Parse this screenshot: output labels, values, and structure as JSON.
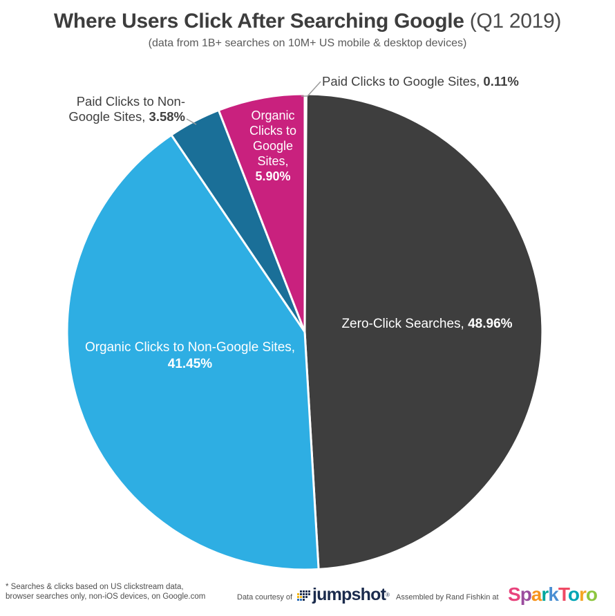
{
  "header": {
    "title_bold": "Where Users Click After Searching Google",
    "title_regular": " (Q1 2019)",
    "subtitle": "(data from 1B+ searches on 10M+ US mobile & desktop devices)"
  },
  "chart_data": {
    "type": "pie",
    "title": "Where Users Click After Searching Google (Q1 2019)",
    "subtitle": "(data from 1B+ searches on 10M+ US mobile & desktop devices)",
    "start_angle_deg": 0,
    "direction": "clockwise",
    "total": 100,
    "slices": [
      {
        "label": "Paid Clicks to Google Sites",
        "value": 0.11,
        "pct_text": "0.11%",
        "color": "#c9217e"
      },
      {
        "label": "Zero-Click Searches",
        "value": 48.96,
        "pct_text": "48.96%",
        "color": "#3e3e3e"
      },
      {
        "label": "Organic Clicks to Non-Google Sites",
        "value": 41.45,
        "pct_text": "41.45%",
        "color": "#2eaee3"
      },
      {
        "label": "Paid Clicks to Non-Google Sites",
        "value": 3.58,
        "pct_text": "3.58%",
        "color": "#1a6f98"
      },
      {
        "label": "Organic Clicks to Google Sites",
        "value": 5.9,
        "pct_text": "5.90%",
        "color": "#c9217e"
      }
    ]
  },
  "labels": {
    "zero_click": {
      "text": "Zero-Click Searches, ",
      "value": "48.96%"
    },
    "organic_non": {
      "line1": "Organic Clicks to Non-Google Sites,",
      "value": "41.45%"
    },
    "organic_goog": {
      "lines": [
        "Organic",
        "Clicks to",
        "Google",
        "Sites,"
      ],
      "value": "5.90%"
    },
    "paid_goog": {
      "text": "Paid Clicks to Google Sites, ",
      "value": "0.11%"
    },
    "paid_non": {
      "line1": "Paid Clicks to Non-",
      "line2": "Google Sites, ",
      "value": "3.58%"
    }
  },
  "footer": {
    "note_line1": "* Searches & clicks based on US clickstream data,",
    "note_line2": "browser searches only, non-iOS devices, on Google.com",
    "data_courtesy": "Data courtesy of",
    "jumpshot_text": "jumpshot",
    "jumpshot_mark": "®",
    "assembled_by": "Assembled by Rand Fishkin at",
    "jumpshot_dots": [
      [
        "",
        "#1b2b4d",
        "#1b2b4d",
        "#1b2b4d",
        "#1b2b4d"
      ],
      [
        "#f0b310",
        "#1b2b4d",
        "#1b2b4d",
        "#1b2b4d",
        "#1b2b4d"
      ],
      [
        "#f0b310",
        "#f0b310",
        "#1b2b4d",
        "#1b2b4d",
        ""
      ],
      [
        "#2f6fb7",
        "#2f6fb7",
        "#1b2b4d",
        "",
        ""
      ]
    ],
    "sparktoro_letters": [
      {
        "ch": "S",
        "color": "#e8437c"
      },
      {
        "ch": "p",
        "color": "#9b4d9e"
      },
      {
        "ch": "a",
        "color": "#f7941e"
      },
      {
        "ch": "r",
        "color": "#00a79d"
      },
      {
        "ch": "k",
        "color": "#4a8fd3"
      },
      {
        "ch": "T",
        "color": "#ef4a64"
      },
      {
        "ch": "o",
        "color": "#00a5b5"
      },
      {
        "ch": "r",
        "color": "#f5a623"
      },
      {
        "ch": "o",
        "color": "#8dc63f"
      }
    ]
  }
}
